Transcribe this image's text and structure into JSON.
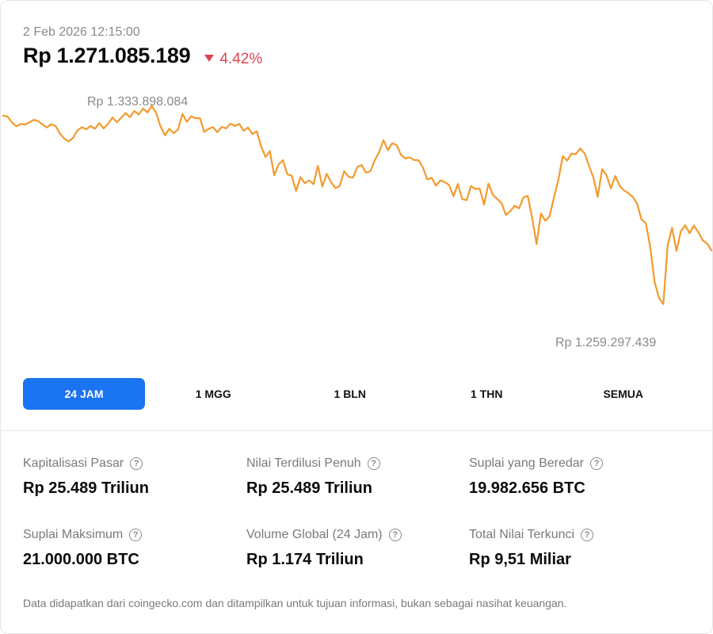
{
  "header": {
    "timestamp": "2 Feb 2026 12:15:00",
    "price": "Rp 1.271.085.189",
    "change": "4.42%",
    "change_direction": "down",
    "change_color": "#e0434f"
  },
  "chart": {
    "high_label": "Rp 1.333.898.084",
    "low_label": "Rp 1.259.297.439",
    "line_color": "#f29a2e"
  },
  "chart_data": {
    "type": "line",
    "series": [
      {
        "values": [
          1329.8,
          1329.5,
          1327.6,
          1326.2,
          1327.0,
          1326.8,
          1327.5,
          1328.4,
          1328.0,
          1326.8,
          1325.8,
          1326.9,
          1326.3,
          1323.7,
          1322.0,
          1321.1,
          1322.3,
          1324.8,
          1325.9,
          1325.2,
          1326.3,
          1325.4,
          1327.3,
          1325.5,
          1327.0,
          1329.2,
          1327.6,
          1329.1,
          1330.7,
          1329.3,
          1331.4,
          1330.2,
          1332.2,
          1330.9,
          1333.1,
          1330.7,
          1326.1,
          1323.1,
          1325.4,
          1323.9,
          1325.1,
          1330.4,
          1327.7,
          1329.6,
          1328.9,
          1329.0,
          1324.3,
          1325.4,
          1325.9,
          1324.2,
          1326.0,
          1325.5,
          1327.1,
          1326.3,
          1327.0,
          1324.7,
          1325.8,
          1323.6,
          1324.5,
          1319.4,
          1315.8,
          1317.8,
          1309.6,
          1313.3,
          1314.7,
          1309.9,
          1309.5,
          1304.3,
          1309.0,
          1306.9,
          1307.9,
          1306.6,
          1312.8,
          1305.8,
          1310.1,
          1307.3,
          1305.3,
          1306.0,
          1311.0,
          1309.1,
          1308.8,
          1312.4,
          1313.1,
          1310.5,
          1311.0,
          1314.7,
          1317.5,
          1321.5,
          1318.1,
          1320.5,
          1319.8,
          1316.5,
          1315.3,
          1315.7,
          1314.8,
          1314.7,
          1312.3,
          1308.2,
          1308.8,
          1306.1,
          1307.9,
          1307.3,
          1306.3,
          1302.5,
          1306.7,
          1301.6,
          1301.2,
          1306.0,
          1305.0,
          1305.1,
          1299.7,
          1306.8,
          1303.0,
          1301.6,
          1300.2,
          1296.2,
          1297.4,
          1299.3,
          1298.4,
          1302.1,
          1302.6,
          1295.2,
          1286.3,
          1296.7,
          1294.2,
          1295.8,
          1302.2,
          1308.2,
          1316.1,
          1314.6,
          1316.9,
          1316.8,
          1318.7,
          1317.0,
          1312.8,
          1308.9,
          1302.3,
          1311.7,
          1309.6,
          1305.2,
          1309.4,
          1306.1,
          1304.5,
          1303.6,
          1302.3,
          1300.0,
          1294.7,
          1293.4,
          1285.5,
          1273.5,
          1268.1,
          1266.0,
          1286.0,
          1291.8,
          1284.0,
          1290.7,
          1292.7,
          1290.0,
          1292.6,
          1290.4,
          1287.6,
          1286.5,
          1284.2
        ]
      }
    ],
    "xlabel": "",
    "ylabel": "",
    "grid": false,
    "legend": "none"
  },
  "ranges": [
    {
      "label": "24 JAM",
      "active": true
    },
    {
      "label": "1 MGG",
      "active": false
    },
    {
      "label": "1 BLN",
      "active": false
    },
    {
      "label": "1 THN",
      "active": false
    },
    {
      "label": "SEMUA",
      "active": false
    }
  ],
  "stats": [
    {
      "label": "Kapitalisasi Pasar",
      "value": "Rp 25.489 Triliun"
    },
    {
      "label": "Nilai Terdilusi Penuh",
      "value": "Rp 25.489 Triliun"
    },
    {
      "label": "Suplai yang Beredar",
      "value": "19.982.656 BTC"
    },
    {
      "label": "Suplai Maksimum",
      "value": "21.000.000 BTC"
    },
    {
      "label": "Volume Global (24 Jam)",
      "value": "Rp 1.174 Triliun"
    },
    {
      "label": "Total Nilai Terkunci",
      "value": "Rp 9,51 Miliar"
    }
  ],
  "help_glyph": "?",
  "footer": {
    "disclaimer": "Data didapatkan dari coingecko.com dan ditampilkan untuk tujuan informasi, bukan sebagai nasihat keuangan."
  }
}
